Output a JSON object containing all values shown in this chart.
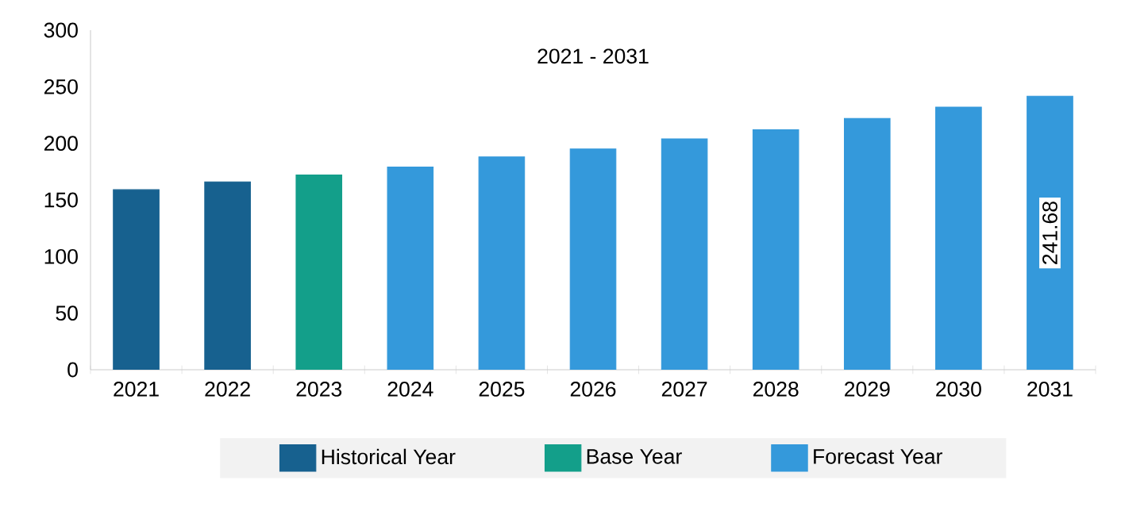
{
  "chart_data": {
    "type": "bar",
    "title": "2021 - 2031",
    "categories": [
      "2021",
      "2022",
      "2023",
      "2024",
      "2025",
      "2026",
      "2027",
      "2028",
      "2029",
      "2030",
      "2031"
    ],
    "ylim": [
      0,
      300
    ],
    "yticks": [
      0,
      50,
      100,
      150,
      200,
      250,
      300
    ],
    "legend": "bottom",
    "grid": false,
    "series": [
      {
        "name": "Historical Year",
        "color": "#17618f",
        "values": [
          159,
          166,
          null,
          null,
          null,
          null,
          null,
          null,
          null,
          null,
          null
        ]
      },
      {
        "name": "Base Year",
        "color": "#139f8a",
        "values": [
          null,
          null,
          172,
          null,
          null,
          null,
          null,
          null,
          null,
          null,
          null
        ]
      },
      {
        "name": "Forecast Year",
        "color": "#3499db",
        "values": [
          null,
          null,
          null,
          179,
          188,
          195,
          204,
          212,
          222,
          232,
          241.68
        ],
        "value_labels": [
          null,
          null,
          null,
          null,
          null,
          null,
          null,
          null,
          null,
          null,
          "241.68"
        ]
      }
    ]
  }
}
